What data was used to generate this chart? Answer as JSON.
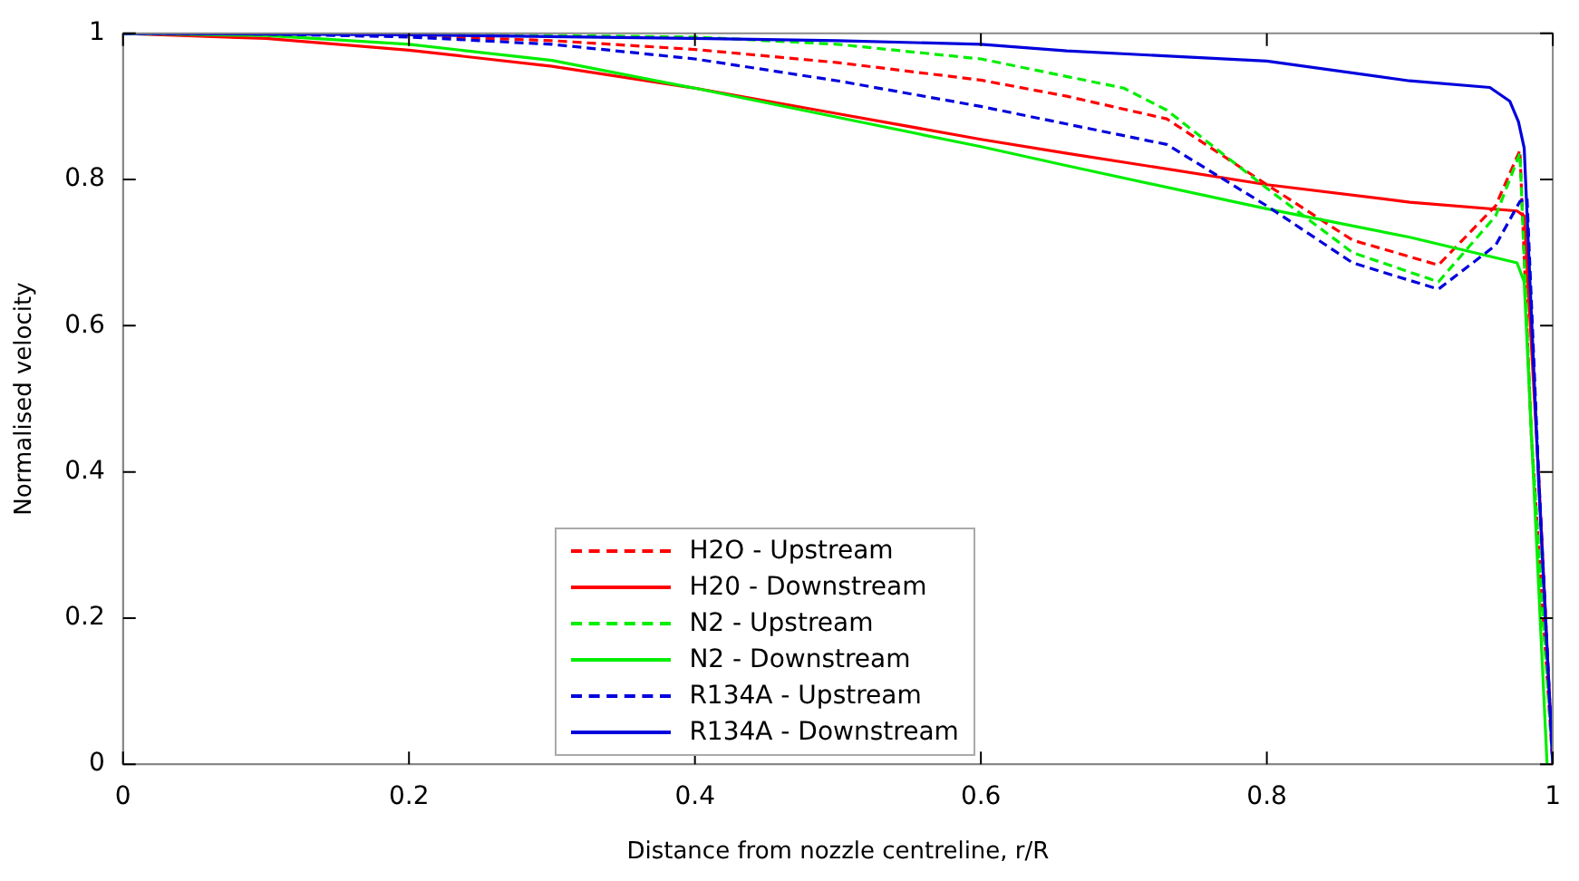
{
  "chart_data": {
    "type": "line",
    "xlabel": "Distance from nozzle centreline, r/R",
    "ylabel": "Normalised velocity",
    "xlim": [
      0,
      1
    ],
    "ylim": [
      0,
      1
    ],
    "xticks": [
      0,
      0.2,
      0.4,
      0.6,
      0.8,
      1
    ],
    "yticks": [
      0,
      0.2,
      0.4,
      0.6,
      0.8,
      1
    ],
    "grid": false,
    "legend": "bottom",
    "marker": "none",
    "series": [
      {
        "name": "H2O - Upstream",
        "color": "#ff0000",
        "line_style": "dashed",
        "x": [
          0,
          0.1,
          0.2,
          0.3,
          0.4,
          0.5,
          0.6,
          0.66,
          0.73,
          0.8,
          0.86,
          0.92,
          0.96,
          0.977,
          0.985,
          1
        ],
        "values": [
          1,
          0.999,
          0.997,
          0.99,
          0.978,
          0.96,
          0.936,
          0.914,
          0.883,
          0.793,
          0.717,
          0.683,
          0.764,
          0.84,
          0.45,
          0
        ]
      },
      {
        "name": "H20 - Downstream",
        "color": "#ff0000",
        "line_style": "solid",
        "x": [
          0,
          0.1,
          0.2,
          0.3,
          0.4,
          0.5,
          0.6,
          0.66,
          0.8,
          0.9,
          0.975,
          0.98,
          0.99,
          1
        ],
        "values": [
          1,
          0.993,
          0.977,
          0.955,
          0.925,
          0.89,
          0.855,
          0.836,
          0.793,
          0.769,
          0.757,
          0.75,
          0.4,
          0
        ]
      },
      {
        "name": "N2 - Upstream",
        "color": "#00ee00",
        "line_style": "dashed",
        "x": [
          0,
          0.1,
          0.2,
          0.3,
          0.4,
          0.5,
          0.6,
          0.7,
          0.73,
          0.8,
          0.86,
          0.92,
          0.96,
          0.977,
          0.985,
          1
        ],
        "values": [
          1,
          0.999,
          0.998,
          0.997,
          0.995,
          0.985,
          0.965,
          0.925,
          0.895,
          0.788,
          0.7,
          0.66,
          0.75,
          0.836,
          0.45,
          0
        ]
      },
      {
        "name": "N2 - Downstream",
        "color": "#00ee00",
        "line_style": "solid",
        "x": [
          0,
          0.1,
          0.2,
          0.3,
          0.4,
          0.5,
          0.6,
          0.66,
          0.8,
          0.9,
          0.975,
          0.98,
          0.996
        ],
        "values": [
          1,
          0.997,
          0.985,
          0.963,
          0.925,
          0.885,
          0.845,
          0.819,
          0.76,
          0.721,
          0.686,
          0.66,
          0
        ]
      },
      {
        "name": "R134A - Upstream",
        "color": "#0000dd",
        "line_style": "dashed",
        "x": [
          0,
          0.1,
          0.2,
          0.3,
          0.4,
          0.5,
          0.6,
          0.66,
          0.73,
          0.8,
          0.86,
          0.92,
          0.96,
          0.977,
          0.982,
          0.99,
          1
        ],
        "values": [
          1,
          0.999,
          0.995,
          0.985,
          0.965,
          0.935,
          0.9,
          0.876,
          0.848,
          0.764,
          0.686,
          0.65,
          0.71,
          0.77,
          0.775,
          0.4,
          0
        ]
      },
      {
        "name": "R134A - Downstream",
        "color": "#0000dd",
        "line_style": "solid",
        "x": [
          0,
          0.2,
          0.4,
          0.5,
          0.6,
          0.66,
          0.8,
          0.9,
          0.956,
          0.97,
          0.976,
          0.98,
          0.99,
          1
        ],
        "values": [
          1,
          0.998,
          0.993,
          0.99,
          0.985,
          0.976,
          0.962,
          0.935,
          0.926,
          0.907,
          0.879,
          0.843,
          0.39,
          0
        ]
      }
    ]
  }
}
